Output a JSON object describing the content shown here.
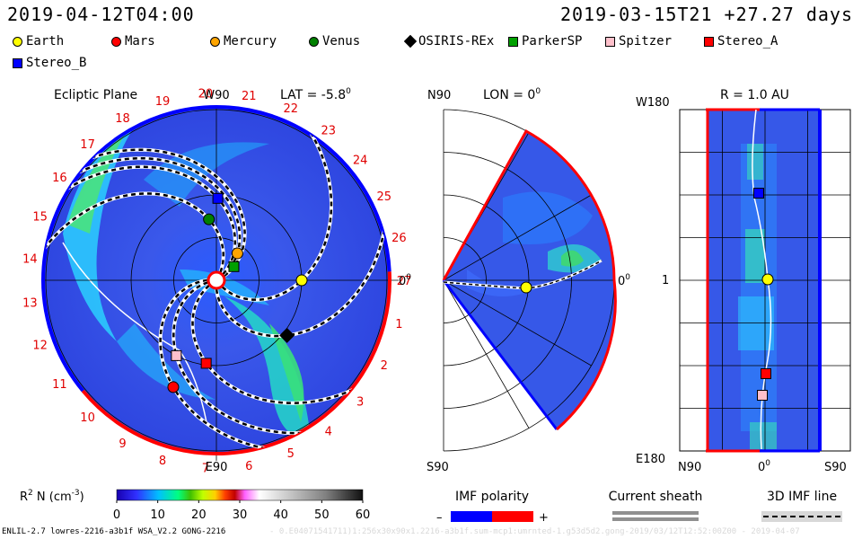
{
  "header": {
    "left_time": "2019-04-12T04:00",
    "right_time": "2019-03-15T21 +27.27 days"
  },
  "legend": [
    {
      "name": "Earth",
      "shape": "circle",
      "color": "#ffff00"
    },
    {
      "name": "Mars",
      "shape": "circle",
      "color": "#ff0000"
    },
    {
      "name": "Mercury",
      "shape": "circle",
      "color": "#ffa500"
    },
    {
      "name": "Venus",
      "shape": "circle",
      "color": "#008000"
    },
    {
      "name": "OSIRIS-REx",
      "shape": "diamond",
      "color": "#000000"
    },
    {
      "name": "ParkerSP",
      "shape": "square",
      "color": "#00a000"
    },
    {
      "name": "Spitzer",
      "shape": "square",
      "color": "#ffc0cb"
    },
    {
      "name": "Stereo_A",
      "shape": "square",
      "color": "#ff0000"
    },
    {
      "name": "Stereo_B",
      "shape": "square",
      "color": "#0000ff"
    }
  ],
  "chart_data": [
    {
      "type": "polar-map",
      "title": "Ecliptic Plane",
      "lat_label": "LAT = -5.8",
      "lat_sup": "0",
      "top_label": "W90",
      "bottom_label": "E90",
      "right_label": "0",
      "right_sup": "0",
      "carrington_labels": [
        "1",
        "2",
        "3",
        "4",
        "5",
        "6",
        "7",
        "8",
        "9",
        "10",
        "11",
        "12",
        "13",
        "14",
        "15",
        "16",
        "17",
        "18",
        "19",
        "20",
        "21",
        "22",
        "23",
        "24",
        "25",
        "26",
        "27"
      ],
      "bodies": [
        {
          "name": "Earth",
          "r": 1.0,
          "angle_deg": 0
        },
        {
          "name": "Mars",
          "r": 1.35,
          "angle_deg": -112
        },
        {
          "name": "Mercury",
          "r": 0.4,
          "angle_deg": 52
        },
        {
          "name": "Venus",
          "r": 0.72,
          "angle_deg": 97
        },
        {
          "name": "OSIRIS-REx",
          "r": 1.05,
          "angle_deg": -38
        },
        {
          "name": "ParkerSP",
          "r": 0.26,
          "angle_deg": 38
        },
        {
          "name": "Spitzer",
          "r": 1.0,
          "angle_deg": -118
        },
        {
          "name": "Stereo_A",
          "r": 0.98,
          "angle_deg": -97
        },
        {
          "name": "Stereo_B",
          "r": 0.96,
          "angle_deg": 89
        }
      ]
    },
    {
      "type": "meridional-map",
      "title": "LON = 0",
      "title_sup": "0",
      "top_label": "N90",
      "bottom_label": "S90",
      "right_label": "0",
      "right_sup": "0"
    },
    {
      "type": "lat-lon-map",
      "title": "R = 1.0 AU",
      "top_label": "W180",
      "bottom_label": "E180",
      "mid_label": "1",
      "x_labels": [
        "N90",
        "0",
        "S90"
      ],
      "x_sup": "0"
    }
  ],
  "colorbar": {
    "label": "R",
    "label_sup": "2",
    "label_rest": " N (cm",
    "label_exp": "-3",
    "label_close": ")",
    "ticks": [
      "0",
      "10",
      "20",
      "30",
      "40",
      "50",
      "60"
    ],
    "range": [
      0,
      60
    ]
  },
  "imf_polarity": {
    "title": "IMF polarity",
    "minus": "–",
    "plus": "+",
    "neg_color": "#0000ff",
    "pos_color": "#ff0000"
  },
  "current_sheath": {
    "title": "Current sheath"
  },
  "imf_line": {
    "title": "3D IMF line"
  },
  "footer": {
    "left": "ENLIL-2.7 lowres-2216-a3b1f WSA_V2.2 GONG-2216",
    "right": "- 0.E04071541711)1:256x30x90x1.2216-a3b1f.sum-mcp1:umrnted-1.g53d5d2.gong-2019/03/12T12:52:00Z00 - 2019-04-07"
  }
}
